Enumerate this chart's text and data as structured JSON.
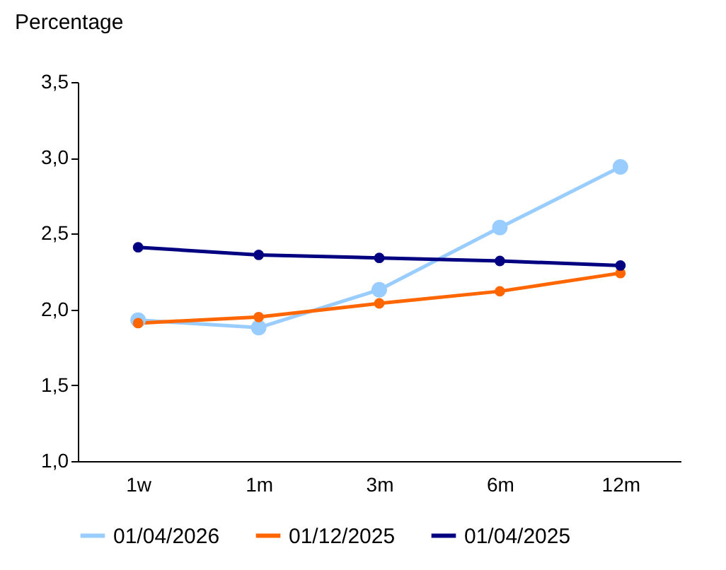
{
  "chart_data": {
    "type": "line",
    "ylabel": "Percentage",
    "categories": [
      "1w",
      "1m",
      "3m",
      "6m",
      "12m"
    ],
    "series": [
      {
        "name": "01/04/2026",
        "color": "#99ccff",
        "values": [
          1.93,
          1.88,
          2.13,
          2.54,
          2.94
        ]
      },
      {
        "name": "01/12/2025",
        "color": "#ff6600",
        "values": [
          1.91,
          1.95,
          2.04,
          2.12,
          2.24
        ]
      },
      {
        "name": "01/04/2025",
        "color": "#000080",
        "values": [
          2.41,
          2.36,
          2.34,
          2.32,
          2.29
        ]
      }
    ],
    "ylim": [
      1,
      3.5
    ],
    "yticks": [
      {
        "value": 1,
        "label": "1,0"
      },
      {
        "value": 1.5,
        "label": "1,5"
      },
      {
        "value": 2,
        "label": "2,0"
      },
      {
        "value": 2.5,
        "label": "2,5"
      },
      {
        "value": 3,
        "label": "3,0"
      },
      {
        "value": 3.5,
        "label": "3,5"
      }
    ],
    "grid": false,
    "legend": "bottom",
    "marker": "circle",
    "line_style": "solid"
  }
}
